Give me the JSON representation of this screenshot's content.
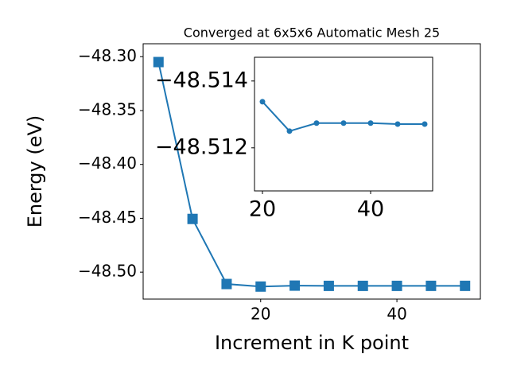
{
  "chart_data": [
    {
      "type": "line",
      "title": "Converged at 6x5x6 Automatic Mesh 25",
      "x_label": "Increment in K point",
      "y_label": "Energy (eV)",
      "x": [
        5,
        10,
        15,
        20,
        25,
        30,
        35,
        40,
        45,
        50
      ],
      "series": [
        {
          "color": "#1f77b4",
          "marker": "square",
          "values": [
            -48.305,
            -48.4506,
            -48.511,
            -48.51338,
            -48.5125,
            -48.51274,
            -48.51274,
            -48.51274,
            -48.51271,
            -48.51271
          ]
        }
      ],
      "xlim": [
        2.75,
        52.25
      ],
      "ylim": [
        -48.525,
        -48.288
      ],
      "xticks": [
        20,
        40
      ],
      "yticks": [
        {
          "value": -48.3,
          "label": "−48.30"
        },
        {
          "value": -48.35,
          "label": "−48.35"
        },
        {
          "value": -48.4,
          "label": "−48.40"
        },
        {
          "value": -48.45,
          "label": "−48.45"
        },
        {
          "value": -48.5,
          "label": "−48.50"
        }
      ]
    },
    {
      "type": "line",
      "x": [
        20,
        25,
        30,
        35,
        40,
        45,
        50
      ],
      "series": [
        {
          "color": "#1f77b4",
          "marker": "circle",
          "values": [
            -48.51338,
            -48.5125,
            -48.51274,
            -48.51274,
            -48.51274,
            -48.51271,
            -48.51271
          ]
        }
      ],
      "xlim": [
        18.53,
        51.47
      ],
      "ylim": [
        -48.51071,
        -48.51471
      ],
      "xticks": [
        20,
        40
      ],
      "yticks": [
        {
          "value": -48.514,
          "label": "−48.514"
        },
        {
          "value": -48.512,
          "label": "−48.512"
        }
      ]
    }
  ]
}
